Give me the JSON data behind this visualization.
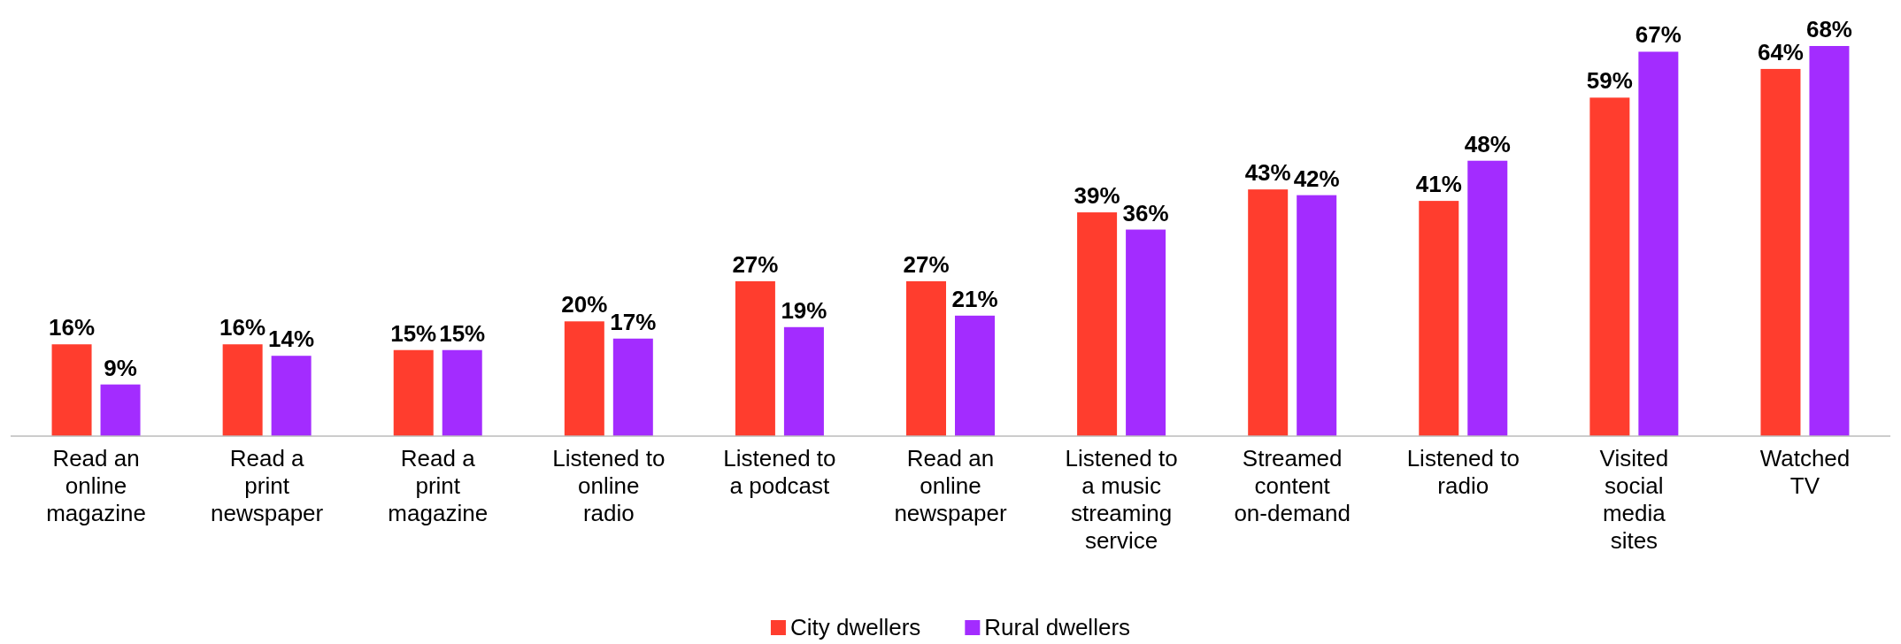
{
  "chart_data": {
    "type": "bar",
    "categories": [
      "Read an online magazine",
      "Read a print newspaper",
      "Read a print magazine",
      "Listened to online radio",
      "Listened to a podcast",
      "Read an online newspaper",
      "Listened to a music streaming service",
      "Streamed content on-demand",
      "Listened to radio",
      "Visited social media sites",
      "Watched TV"
    ],
    "series": [
      {
        "name": "City dwellers",
        "color": "#ff3d2e",
        "values": [
          16,
          16,
          15,
          20,
          27,
          27,
          39,
          43,
          41,
          59,
          64
        ],
        "value_labels": [
          "16%",
          "16%",
          "15%",
          "20%",
          "27%",
          "27%",
          "39%",
          "43%",
          "41%",
          "59%",
          "64%"
        ]
      },
      {
        "name": "Rural dwellers",
        "color": "#a32cff",
        "values": [
          9,
          14,
          15,
          17,
          19,
          21,
          36,
          42,
          48,
          67,
          68
        ],
        "value_labels": [
          "9%",
          "14%",
          "15%",
          "17%",
          "19%",
          "21%",
          "36%",
          "42%",
          "48%",
          "67%",
          "68%"
        ]
      }
    ],
    "legend": "bottom"
  }
}
